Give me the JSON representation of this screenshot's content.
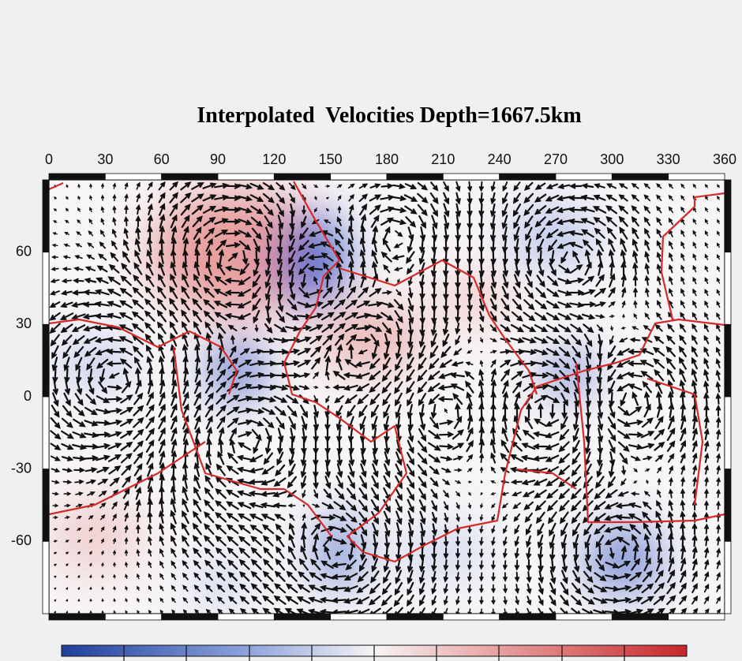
{
  "chart_data": {
    "type": "map",
    "title": "Interpolated  Velocities Depth=1667.5km",
    "xlim": [
      0,
      360
    ],
    "xticks": [
      0,
      30,
      60,
      90,
      120,
      150,
      180,
      210,
      240,
      270,
      300,
      330,
      360
    ],
    "ylim": [
      -90,
      90
    ],
    "yticks": [
      60,
      30,
      0,
      -30,
      -60
    ]
  }
}
